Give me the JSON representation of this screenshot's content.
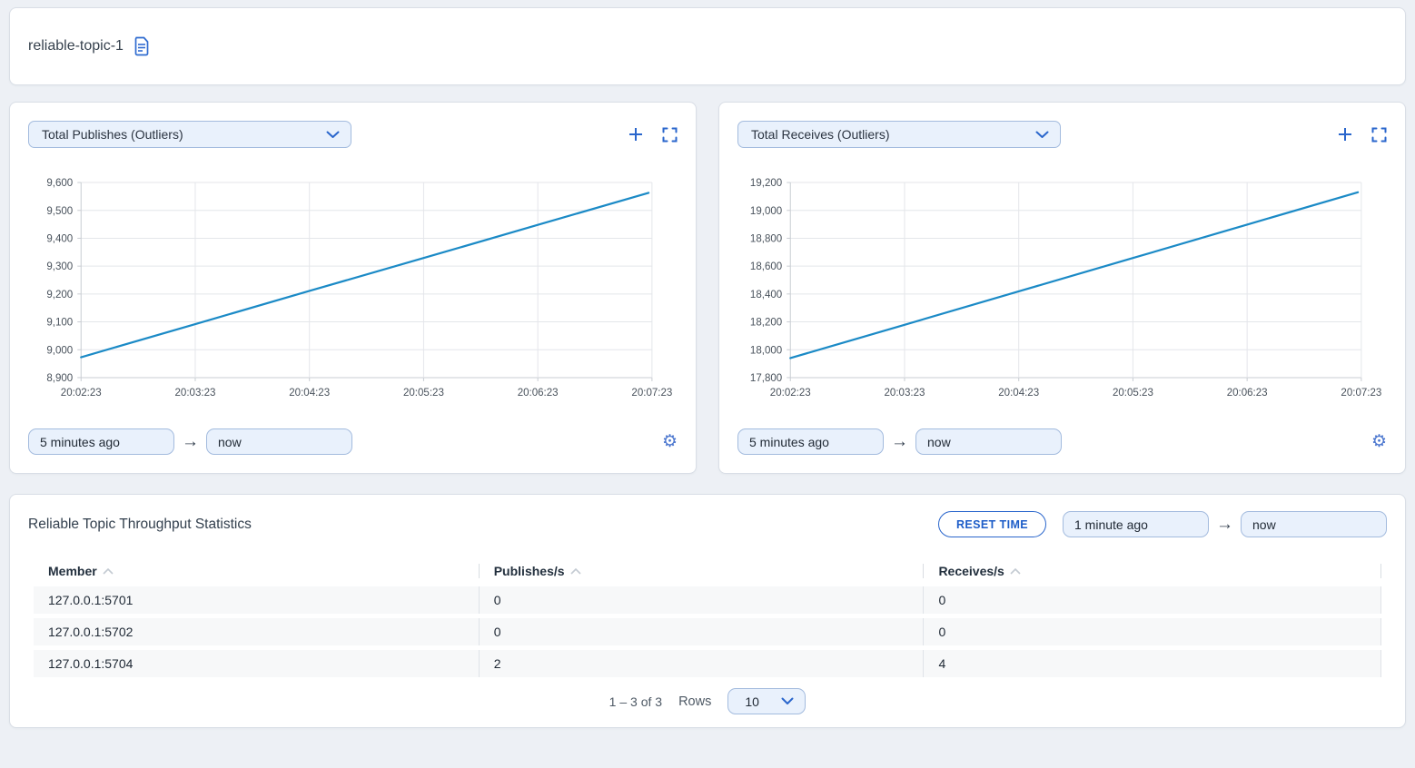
{
  "page": {
    "title": "reliable-topic-1"
  },
  "charts": [
    {
      "metric_label": "Total Publishes (Outliers)",
      "time_from": "5 minutes ago",
      "time_to": "now"
    },
    {
      "metric_label": "Total Receives (Outliers)",
      "time_from": "5 minutes ago",
      "time_to": "now"
    }
  ],
  "chart_data": [
    {
      "type": "line",
      "title": "Total Publishes (Outliers)",
      "x": [
        0,
        1,
        2,
        3,
        4,
        4.97
      ],
      "xlim": [
        0,
        5
      ],
      "x_tick_labels": [
        "20:02:23",
        "20:03:23",
        "20:04:23",
        "20:05:23",
        "20:06:23",
        "20:07:23"
      ],
      "series": [
        {
          "name": "Total Publishes",
          "values": [
            8973,
            9092,
            9211,
            9329,
            9448,
            9563
          ]
        }
      ],
      "ylim": [
        8900,
        9600
      ],
      "ytick_step": 100,
      "grid": true,
      "legend": "none",
      "line_color": "#1b8ac6"
    },
    {
      "type": "line",
      "title": "Total Receives (Outliers)",
      "x": [
        0,
        1,
        2,
        3,
        4,
        4.97
      ],
      "xlim": [
        0,
        5
      ],
      "x_tick_labels": [
        "20:02:23",
        "20:03:23",
        "20:04:23",
        "20:05:23",
        "20:06:23",
        "20:07:23"
      ],
      "series": [
        {
          "name": "Total Receives",
          "values": [
            17940,
            18179,
            18419,
            18658,
            18898,
            19130
          ]
        }
      ],
      "ylim": [
        17800,
        19200
      ],
      "ytick_step": 200,
      "grid": true,
      "legend": "none",
      "line_color": "#1b8ac6"
    }
  ],
  "stats": {
    "title": "Reliable Topic Throughput Statistics",
    "reset_button": "RESET TIME",
    "time_from": "1 minute ago",
    "time_to": "now",
    "table": {
      "columns": [
        "Member",
        "Publishes/s",
        "Receives/s"
      ],
      "rows": [
        [
          "127.0.0.1:5701",
          "0",
          "0"
        ],
        [
          "127.0.0.1:5702",
          "0",
          "0"
        ],
        [
          "127.0.0.1:5704",
          "2",
          "4"
        ]
      ]
    },
    "pagination": {
      "range_label": "1 – 3 of 3",
      "rows_label": "Rows",
      "page_size": "10"
    }
  },
  "colors": {
    "accent_blue": "#2a66cc",
    "chart_line": "#1b8ac6",
    "grid_line": "#e4e6ea",
    "axis_line": "#c9cdd3",
    "tick_text": "#49525c",
    "input_bg": "#e9f1fc",
    "input_border": "#a3bbde",
    "row_bg": "#f7f8f9",
    "page_bg": "#edf0f5"
  }
}
